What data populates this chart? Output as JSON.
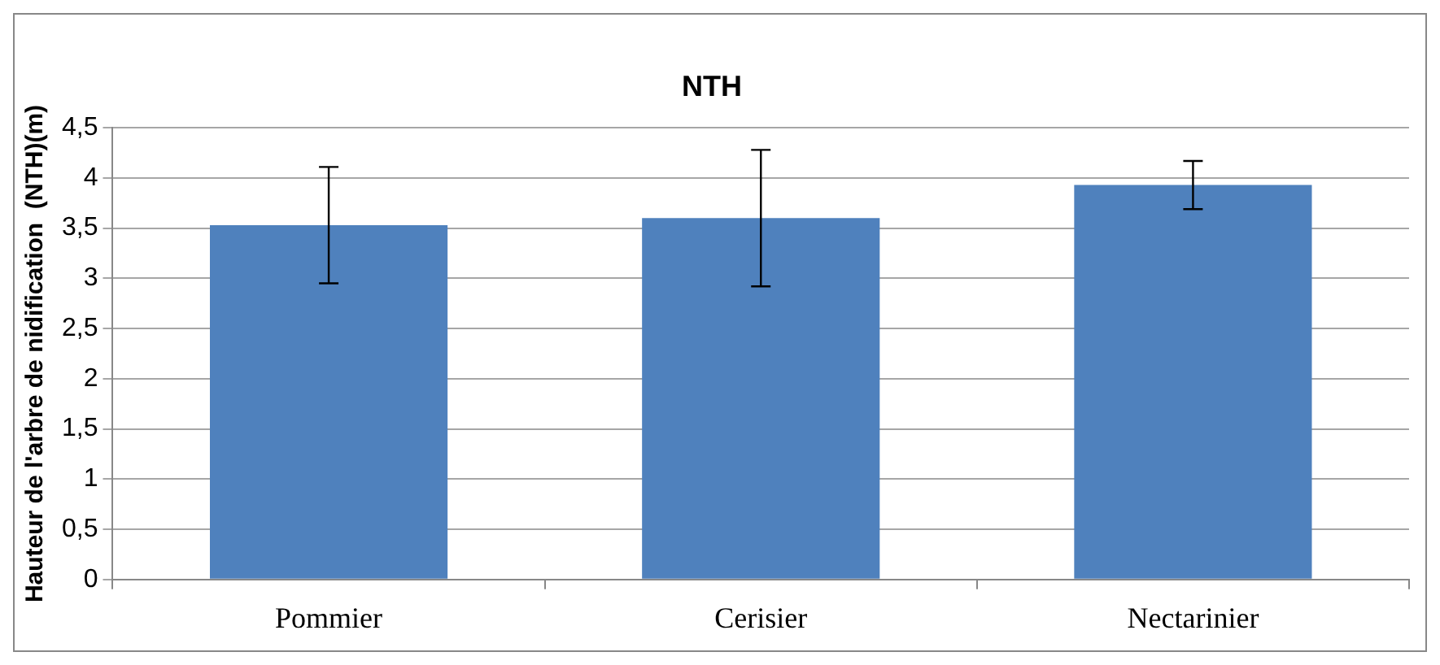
{
  "chart_data": {
    "type": "bar",
    "title": "NTH",
    "ylabel": "Hauteur de l'arbre de nidification  (NTH)(m)",
    "categories": [
      "Pommier",
      "Cerisier",
      "Nectarinier"
    ],
    "values": [
      3.53,
      3.6,
      3.93
    ],
    "errors": [
      0.58,
      0.68,
      0.24
    ],
    "color": "#4f81bd",
    "ylim": [
      0,
      4.5
    ],
    "yticks": [
      {
        "value": 0,
        "label": "0"
      },
      {
        "value": 0.5,
        "label": "0,5"
      },
      {
        "value": 1,
        "label": "1"
      },
      {
        "value": 1.5,
        "label": "1,5"
      },
      {
        "value": 2,
        "label": "2"
      },
      {
        "value": 2.5,
        "label": "2,5"
      },
      {
        "value": 3,
        "label": "3"
      },
      {
        "value": 3.5,
        "label": "3,5"
      },
      {
        "value": 4,
        "label": "4"
      },
      {
        "value": 4.5,
        "label": "4,5"
      }
    ],
    "grid": "y",
    "legend": false
  }
}
